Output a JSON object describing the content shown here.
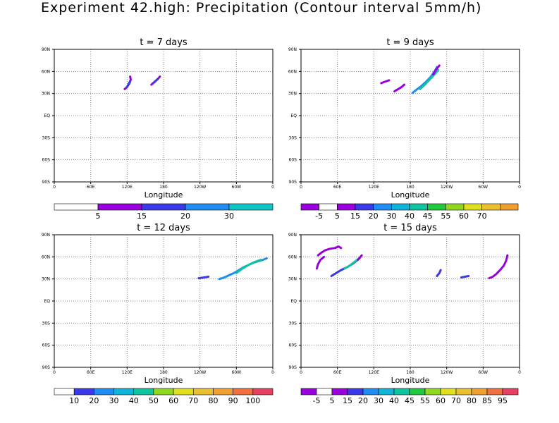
{
  "title": "Experiment 42.high: Precipitation (Contour interval 5mm/h)",
  "chart_data": [
    {
      "type": "heatmap",
      "title": "t = 7 days",
      "xlabel": "Longitude",
      "xticks": [
        "0",
        "60E",
        "120E",
        "180",
        "120W",
        "60W",
        "0"
      ],
      "yticks": [
        "90N",
        "60N",
        "30N",
        "EQ",
        "30S",
        "60S",
        "90S"
      ],
      "xlim": [
        0,
        360
      ],
      "ylim": [
        -90,
        90
      ],
      "grid": true,
      "colorbar": {
        "colors": [
          "#ffffff",
          "#9900dd",
          "#3a3ae8",
          "#1e8cf0",
          "#10c4c4"
        ],
        "labels": [
          "5",
          "15",
          "20",
          "30"
        ]
      },
      "features": [
        {
          "lon": [
            116,
            120,
            124,
            126,
            125
          ],
          "lat": [
            36,
            39,
            44,
            49,
            53
          ],
          "color": "#9900dd"
        },
        {
          "lon": [
            119,
            122,
            125
          ],
          "lat": [
            38,
            42,
            47
          ],
          "color": "#3a3ae8"
        },
        {
          "lon": [
            160,
            164,
            168,
            172,
            174
          ],
          "lat": [
            42,
            45,
            48,
            51,
            53
          ],
          "color": "#9900dd"
        },
        {
          "lon": [
            163,
            167,
            171
          ],
          "lat": [
            44,
            47,
            50
          ],
          "color": "#3a3ae8"
        }
      ]
    },
    {
      "type": "heatmap",
      "title": "t = 9 days",
      "xlabel": "Longitude",
      "xticks": [
        "0",
        "60E",
        "120E",
        "180",
        "120W",
        "60W",
        "0"
      ],
      "yticks": [
        "90N",
        "60N",
        "30N",
        "EQ",
        "30S",
        "60S",
        "90S"
      ],
      "xlim": [
        0,
        360
      ],
      "ylim": [
        -90,
        90
      ],
      "grid": true,
      "colorbar": {
        "colors": [
          "#9900dd",
          "#ffffff",
          "#9900dd",
          "#3a3ae8",
          "#1e8cf0",
          "#10b4d8",
          "#10c4a0",
          "#20c840",
          "#90d820",
          "#e0e020",
          "#e8c030",
          "#f0a030"
        ],
        "labels": [
          "-5",
          "5",
          "15",
          "20",
          "30",
          "40",
          "45",
          "55",
          "60",
          "70"
        ]
      },
      "features": [
        {
          "lon": [
            132,
            138,
            145
          ],
          "lat": [
            44,
            46,
            48
          ],
          "color": "#9900dd"
        },
        {
          "lon": [
            154,
            160,
            166,
            170
          ],
          "lat": [
            33,
            36,
            39,
            42
          ],
          "color": "#9900dd"
        },
        {
          "lon": [
            184,
            190,
            198,
            206,
            214,
            220,
            224
          ],
          "lat": [
            31,
            35,
            40,
            46,
            53,
            60,
            66
          ],
          "color": "#1e8cf0"
        },
        {
          "lon": [
            196,
            204,
            212,
            220,
            226
          ],
          "lat": [
            36,
            42,
            49,
            56,
            62
          ],
          "color": "#10c4a0"
        },
        {
          "lon": [
            218,
            222,
            226,
            228
          ],
          "lat": [
            56,
            62,
            66,
            68
          ],
          "color": "#9900dd"
        }
      ]
    },
    {
      "type": "heatmap",
      "title": "t = 12 days",
      "xlabel": "Longitude",
      "xticks": [
        "0",
        "60E",
        "120E",
        "180",
        "120W",
        "60W",
        "0"
      ],
      "yticks": [
        "90N",
        "60N",
        "30N",
        "EQ",
        "30S",
        "60S",
        "90S"
      ],
      "xlim": [
        0,
        360
      ],
      "ylim": [
        -90,
        90
      ],
      "grid": true,
      "colorbar": {
        "colors": [
          "#ffffff",
          "#3a3ae8",
          "#1e8cf0",
          "#10b4d8",
          "#10c4a0",
          "#90d820",
          "#e0e020",
          "#e8c030",
          "#f0a030",
          "#f07040",
          "#e84060"
        ],
        "labels": [
          "10",
          "20",
          "30",
          "40",
          "50",
          "60",
          "70",
          "80",
          "90",
          "100"
        ]
      },
      "features": [
        {
          "lon": [
            238,
            246,
            254
          ],
          "lat": [
            31,
            32,
            33
          ],
          "color": "#3a3ae8"
        },
        {
          "lon": [
            272,
            280,
            288,
            296,
            304,
            312,
            320,
            328,
            336,
            344,
            350
          ],
          "lat": [
            30,
            32,
            35,
            38,
            42,
            46,
            49,
            52,
            54,
            56,
            58
          ],
          "color": "#1e8cf0"
        },
        {
          "lon": [
            300,
            310,
            320,
            330,
            340
          ],
          "lat": [
            38,
            44,
            49,
            53,
            56
          ],
          "color": "#10c4a0"
        }
      ]
    },
    {
      "type": "heatmap",
      "title": "t = 15 days",
      "xlabel": "Longitude",
      "xticks": [
        "0",
        "60E",
        "120E",
        "180",
        "120W",
        "60W",
        "0"
      ],
      "yticks": [
        "90N",
        "60N",
        "30N",
        "EQ",
        "30S",
        "60S",
        "90S"
      ],
      "xlim": [
        0,
        360
      ],
      "ylim": [
        -90,
        90
      ],
      "grid": true,
      "colorbar": {
        "colors": [
          "#9900dd",
          "#ffffff",
          "#9900dd",
          "#3a3ae8",
          "#1e8cf0",
          "#10b4d8",
          "#10c4a0",
          "#20c840",
          "#90d820",
          "#e0e020",
          "#e8c030",
          "#f0a030",
          "#f07040",
          "#e84060"
        ],
        "labels": [
          "-5",
          "5",
          "15",
          "20",
          "30",
          "40",
          "45",
          "55",
          "60",
          "70",
          "80",
          "85",
          "95"
        ]
      },
      "features": [
        {
          "lon": [
            28,
            34,
            40,
            48,
            56,
            62,
            66
          ],
          "lat": [
            62,
            66,
            69,
            71,
            72,
            74,
            72
          ],
          "color": "#9900dd"
        },
        {
          "lon": [
            26,
            28,
            32,
            38
          ],
          "lat": [
            44,
            50,
            56,
            60
          ],
          "color": "#9900dd"
        },
        {
          "lon": [
            50,
            58,
            66,
            76,
            86,
            92,
            96,
            98
          ],
          "lat": [
            34,
            38,
            42,
            46,
            51,
            55,
            58,
            60
          ],
          "color": "#3a3ae8"
        },
        {
          "lon": [
            72,
            80,
            88,
            94,
            98
          ],
          "lat": [
            44,
            48,
            53,
            57,
            60
          ],
          "color": "#10c4a0"
        },
        {
          "lon": [
            94,
            98,
            100
          ],
          "lat": [
            56,
            60,
            62
          ],
          "color": "#9900dd"
        },
        {
          "lon": [
            224,
            228,
            230
          ],
          "lat": [
            34,
            38,
            42
          ],
          "color": "#3a3ae8"
        },
        {
          "lon": [
            264,
            270,
            276
          ],
          "lat": [
            32,
            33,
            34
          ],
          "color": "#3a3ae8"
        },
        {
          "lon": [
            310,
            316,
            322,
            328,
            334,
            338,
            340
          ],
          "lat": [
            31,
            33,
            37,
            42,
            48,
            55,
            62
          ],
          "color": "#9900dd"
        }
      ]
    }
  ]
}
